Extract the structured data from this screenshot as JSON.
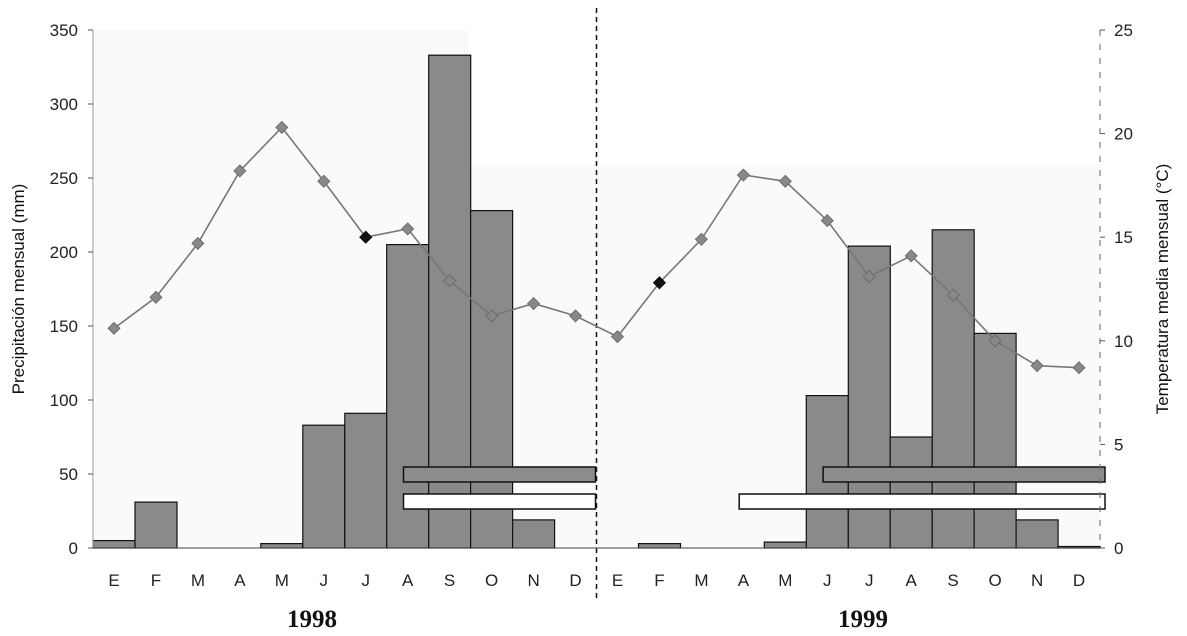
{
  "chart_data": {
    "type": "bar",
    "categories": [
      "E",
      "F",
      "M",
      "A",
      "M",
      "J",
      "J",
      "A",
      "S",
      "O",
      "N",
      "D",
      "E",
      "F",
      "M",
      "A",
      "M",
      "J",
      "J",
      "A",
      "S",
      "O",
      "N",
      "D"
    ],
    "years": [
      "1998",
      "1999"
    ],
    "ylabel": "Precipitación mensual (mm)",
    "y2label": "Temperatura media mensual (°C)",
    "ylim": [
      0,
      350
    ],
    "y2lim": [
      0,
      25
    ],
    "yticks": [
      "0",
      "50",
      "100",
      "150",
      "200",
      "250",
      "300",
      "350"
    ],
    "y2ticks": [
      "0",
      "5",
      "10",
      "15",
      "20",
      "25"
    ],
    "series": [
      {
        "kind": "bar",
        "axis": "left",
        "values": [
          5,
          31,
          0,
          0,
          3,
          83,
          91,
          205,
          333,
          228,
          19,
          0,
          0,
          3,
          0,
          0,
          4,
          103,
          204,
          75,
          215,
          145,
          19,
          1
        ],
        "color": "#8a8a8a"
      },
      {
        "kind": "line",
        "axis": "right",
        "values": [
          10.6,
          12.1,
          14.7,
          18.2,
          20.3,
          17.7,
          15.0,
          15.4,
          12.9,
          11.2,
          11.8,
          11.2,
          10.2,
          12.8,
          14.9,
          18.0,
          17.7,
          15.8,
          13.1,
          14.1,
          12.2,
          10.0,
          8.8,
          8.7
        ],
        "color": "#777777",
        "marker_color": "#888888",
        "highlight_color": "#111111",
        "highlight_points": [
          6,
          13
        ]
      }
    ],
    "reference_line": {
      "after_category": 11,
      "style": "dashed"
    },
    "period_bars": [
      {
        "fill": "#8c8c8c",
        "from_category": 7,
        "to_category": 11
      },
      {
        "fill": "#ffffff",
        "from_category": 7,
        "to_category": 11
      },
      {
        "fill": "#8c8c8c",
        "from_category": 17,
        "to_category": 23
      },
      {
        "fill": "#ffffff",
        "from_category": 15,
        "to_category": 23
      }
    ],
    "grid": false,
    "legend": "none"
  }
}
